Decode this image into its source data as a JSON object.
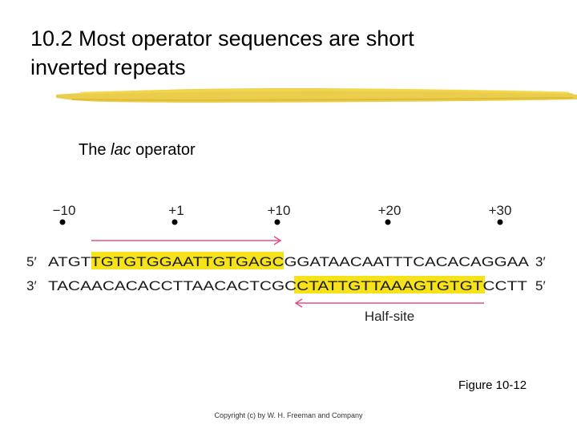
{
  "slide": {
    "title_line1": "10.2 Most operator sequences are short",
    "title_line2": "inverted repeats",
    "subtitle_prefix": "The ",
    "subtitle_italic": "lac",
    "subtitle_suffix": " operator",
    "figure_label": "Figure 10-12",
    "copyright": "Copyright (c) by W. H. Freeman and Company",
    "accent_color": "#f6e21a",
    "underline_color": "#e9c83a"
  },
  "diagram": {
    "positions": [
      "−10",
      "+1",
      "+10",
      "+20",
      "+30"
    ],
    "top_strand": {
      "end5": "5′",
      "pre": "ATGT",
      "highlight": "TGTGTGGAATTGTGAGC",
      "post": "GGATAACAATTTCACACAGGAA",
      "end3": "3′"
    },
    "bottom_strand": {
      "end3": "3′",
      "pre": "TACAACACACCTTAACACTCGC",
      "highlight": "CTATTGTTAAAGTGTGT",
      "post": "CCTT",
      "end5": "5′"
    },
    "half_site_label": "Half-site",
    "arrow_color": "#e0508a"
  }
}
